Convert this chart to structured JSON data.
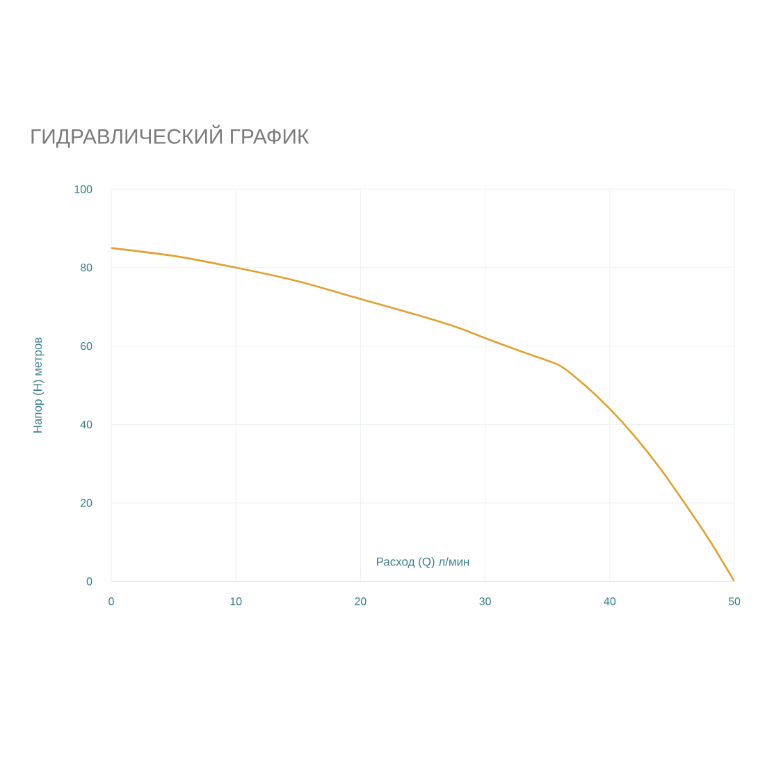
{
  "chart_data": {
    "type": "line",
    "title": "ГИДРАВЛИЧЕСКИЙ ГРАФИК",
    "xlabel": "Расход (Q) л/мин",
    "ylabel": "Напор (H) метров",
    "x": [
      0,
      5,
      10,
      15,
      20,
      25,
      28,
      30,
      33,
      36,
      38,
      40,
      42,
      44,
      46,
      48,
      50
    ],
    "series": [
      {
        "color": "#e0a030",
        "values": [
          85,
          83,
          80,
          76.5,
          72,
          67.5,
          64.5,
          62,
          58.5,
          55,
          50,
          44,
          37,
          29,
          20,
          10.5,
          0
        ]
      }
    ],
    "xlim": [
      0,
      50
    ],
    "ylim": [
      0,
      100
    ],
    "xticks": [
      0,
      10,
      20,
      30,
      40,
      50
    ],
    "yticks": [
      0,
      20,
      40,
      60,
      80,
      100
    ],
    "grid": true,
    "marker": "none",
    "line_style": "solid"
  }
}
